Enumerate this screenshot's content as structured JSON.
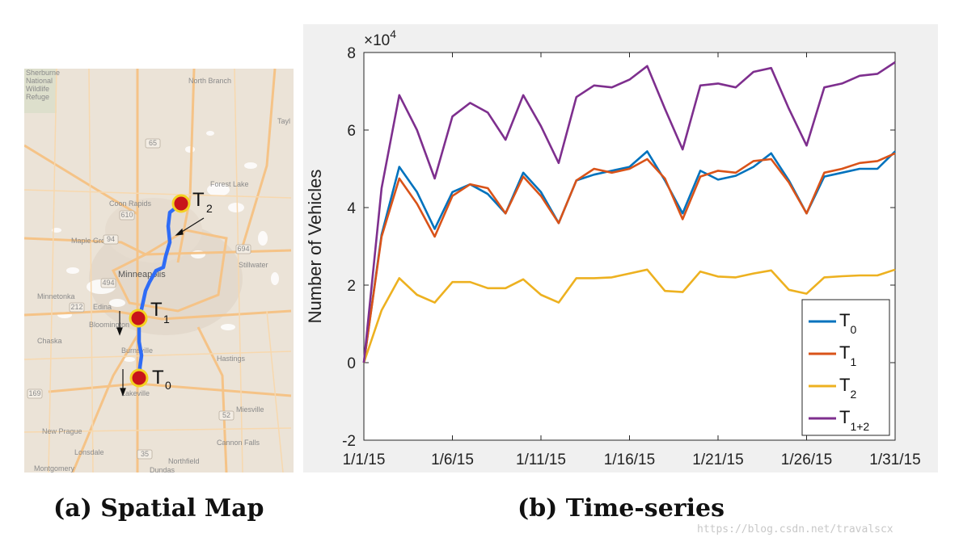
{
  "captions": {
    "a": "(a) Spatial Map",
    "b": "(b) Time-series"
  },
  "watermark": "https://blog.csdn.net/travalscx",
  "map": {
    "place_labels": [
      "Sherburne",
      "National",
      "Wildlife",
      "Refuge",
      "North Branch",
      "Tayl",
      "Forest Lake",
      "Coon Rapids",
      "Maple Grove",
      "Stillwater",
      "Minneapolis",
      "Minnetonka",
      "Edina",
      "Bloomington",
      "Chaska",
      "Burnsville",
      "Hastings",
      "Lakeville",
      "Miesville",
      "New Prague",
      "Lonsdale",
      "Cannon Falls",
      "Montgomery",
      "Northfield",
      "Dundas"
    ],
    "road_shields": [
      "65",
      "610",
      "94",
      "694",
      "494",
      "212",
      "52",
      "35",
      "169"
    ],
    "markers": [
      {
        "id": "T2",
        "main": "T",
        "sub": "2"
      },
      {
        "id": "T1",
        "main": "T",
        "sub": "1"
      },
      {
        "id": "T0",
        "main": "T",
        "sub": "0"
      }
    ],
    "colors": {
      "route": "#2f6cf6",
      "marker_fill": "#c8141a",
      "marker_ring": "#f3d222",
      "land": "#ece3d8",
      "road": "#f6c689"
    }
  },
  "chart_data": {
    "type": "line",
    "ylabel": "Number of Vehicles",
    "xlabel": "",
    "title": "",
    "y_multiplier": "×10",
    "y_multiplier_exp": "4",
    "ylim": [
      -2,
      8
    ],
    "yticks": [
      -2,
      0,
      2,
      4,
      6,
      8
    ],
    "xlim": [
      1,
      31
    ],
    "xticks": [
      {
        "day": 1,
        "label": "1/1/15"
      },
      {
        "day": 6,
        "label": "1/6/15"
      },
      {
        "day": 11,
        "label": "1/11/15"
      },
      {
        "day": 16,
        "label": "1/16/15"
      },
      {
        "day": 21,
        "label": "1/21/15"
      },
      {
        "day": 26,
        "label": "1/26/15"
      },
      {
        "day": 31,
        "label": "1/31/15"
      }
    ],
    "x_dates": [
      "1/1/15",
      "1/2/15",
      "1/3/15",
      "1/4/15",
      "1/5/15",
      "1/6/15",
      "1/7/15",
      "1/8/15",
      "1/9/15",
      "1/10/15",
      "1/11/15",
      "1/12/15",
      "1/13/15",
      "1/14/15",
      "1/15/15",
      "1/16/15",
      "1/17/15",
      "1/18/15",
      "1/19/15",
      "1/20/15",
      "1/21/15",
      "1/22/15",
      "1/23/15",
      "1/24/15",
      "1/25/15",
      "1/26/15",
      "1/27/15",
      "1/28/15",
      "1/29/15",
      "1/30/15",
      "1/31/15"
    ],
    "grid": false,
    "legend_placement": "bottom-right",
    "series": [
      {
        "name": "T",
        "sub": "0",
        "color": "#0072bd",
        "values": [
          0,
          3.3,
          5.05,
          4.4,
          3.45,
          4.4,
          4.6,
          4.35,
          3.85,
          4.9,
          4.4,
          3.6,
          4.7,
          4.85,
          4.95,
          5.05,
          5.45,
          4.7,
          3.85,
          4.95,
          4.72,
          4.82,
          5.05,
          5.4,
          4.7,
          3.85,
          4.8,
          4.9,
          5.0,
          5.0,
          5.45
        ]
      },
      {
        "name": "T",
        "sub": "1",
        "color": "#d95319",
        "values": [
          0,
          3.25,
          4.75,
          4.1,
          3.25,
          4.3,
          4.6,
          4.5,
          3.85,
          4.8,
          4.3,
          3.6,
          4.7,
          5.0,
          4.9,
          5.0,
          5.25,
          4.75,
          3.7,
          4.8,
          4.95,
          4.9,
          5.2,
          5.25,
          4.65,
          3.85,
          4.9,
          5.0,
          5.15,
          5.2,
          5.4
        ]
      },
      {
        "name": "T",
        "sub": "2",
        "color": "#edb120",
        "values": [
          0,
          1.35,
          2.18,
          1.75,
          1.55,
          2.08,
          2.08,
          1.92,
          1.92,
          2.15,
          1.75,
          1.55,
          2.18,
          2.18,
          2.2,
          2.3,
          2.4,
          1.85,
          1.82,
          2.35,
          2.22,
          2.2,
          2.3,
          2.38,
          1.88,
          1.78,
          2.2,
          2.23,
          2.25,
          2.25,
          2.4
        ]
      },
      {
        "name": "T",
        "sub": "1+2",
        "color": "#7e2f8e",
        "values": [
          0,
          4.5,
          6.9,
          6.0,
          4.75,
          6.35,
          6.7,
          6.45,
          5.75,
          6.9,
          6.1,
          5.15,
          6.85,
          7.15,
          7.1,
          7.3,
          7.65,
          6.55,
          5.5,
          7.15,
          7.2,
          7.1,
          7.5,
          7.6,
          6.55,
          5.6,
          7.1,
          7.2,
          7.4,
          7.45,
          7.75
        ]
      }
    ]
  }
}
